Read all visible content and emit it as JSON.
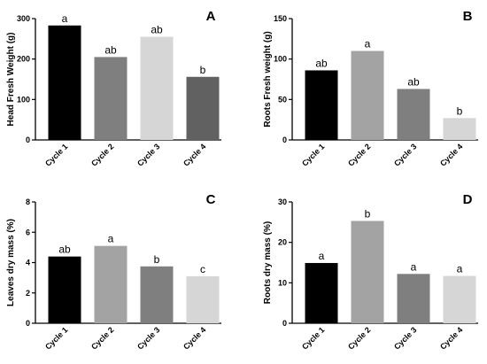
{
  "chart_data": [
    {
      "type": "bar",
      "panel_label": "A",
      "ylabel": "Head Fresh Weight (g)",
      "categories": [
        "Cycle 1",
        "Cycle 2",
        "Cycle 3",
        "Cycle 4"
      ],
      "values": [
        283,
        205,
        255,
        156
      ],
      "significance": [
        "a",
        "ab",
        "ab",
        "b"
      ],
      "colors": [
        "#000000",
        "#7f7f7f",
        "#d6d6d6",
        "#616161"
      ],
      "ylim": [
        0,
        300
      ],
      "yticks": [
        "0",
        "100",
        "200",
        "300"
      ],
      "grid": false,
      "legend": false
    },
    {
      "type": "bar",
      "panel_label": "B",
      "ylabel": "Roots Fresh weight (g)",
      "categories": [
        "Cycle 1",
        "Cycle 2",
        "Cycle 3",
        "Cycle 4"
      ],
      "values": [
        86,
        110,
        63,
        27
      ],
      "significance": [
        "ab",
        "a",
        "ab",
        "b"
      ],
      "colors": [
        "#000000",
        "#a3a3a3",
        "#7f7f7f",
        "#d6d6d6"
      ],
      "ylim": [
        0,
        150
      ],
      "yticks": [
        "0",
        "50",
        "100",
        "150"
      ],
      "grid": false,
      "legend": false
    },
    {
      "type": "bar",
      "panel_label": "C",
      "ylabel": "Leaves dry mass (%)",
      "categories": [
        "Cycle 1",
        "Cycle 2",
        "Cycle 3",
        "Cycle 4"
      ],
      "values": [
        4.4,
        5.1,
        3.75,
        3.1
      ],
      "significance": [
        "ab",
        "a",
        "b",
        "c"
      ],
      "colors": [
        "#000000",
        "#a3a3a3",
        "#7f7f7f",
        "#d6d6d6"
      ],
      "ylim": [
        0,
        8
      ],
      "yticks": [
        "0",
        "2",
        "4",
        "6",
        "8"
      ],
      "grid": false,
      "legend": false
    },
    {
      "type": "bar",
      "panel_label": "D",
      "ylabel": "Roots dry mass (%)",
      "categories": [
        "Cycle 1",
        "Cycle 2",
        "Cycle 3",
        "Cycle 4"
      ],
      "values": [
        14.9,
        25.3,
        12.2,
        11.7
      ],
      "significance": [
        "a",
        "b",
        "a",
        "a"
      ],
      "colors": [
        "#000000",
        "#a3a3a3",
        "#7f7f7f",
        "#d6d6d6"
      ],
      "ylim": [
        0,
        30
      ],
      "yticks": [
        "0",
        "10",
        "20",
        "30"
      ],
      "grid": false,
      "legend": false
    }
  ]
}
